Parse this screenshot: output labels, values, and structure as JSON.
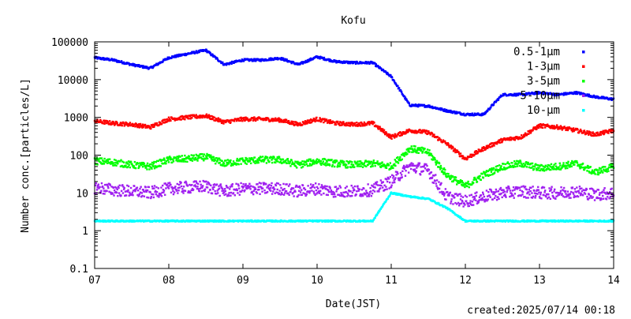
{
  "chart_data": {
    "type": "scatter",
    "title": "Kofu",
    "xlabel": "Date(JST)",
    "ylabel": "Number conc.[particles/L]",
    "yscale": "log",
    "ylim": [
      0.1,
      100000
    ],
    "xlim": [
      "2025-07-07",
      "2025-07-14"
    ],
    "x_tick_labels": [
      "07",
      "08",
      "09",
      "10",
      "11",
      "12",
      "13",
      "14"
    ],
    "y_tick_labels": [
      "0.1",
      "1",
      "10",
      "100",
      "1000",
      "10000",
      "100000"
    ],
    "grid": false,
    "legend_position": "top-right",
    "created": "created:2025/07/14 00:18",
    "series": [
      {
        "name": "0.5-1μm",
        "color": "#0000ff",
        "x": [
          "07 00:00",
          "07 06:00",
          "07 12:00",
          "07 18:00",
          "08 00:00",
          "08 06:00",
          "08 12:00",
          "08 18:00",
          "09 00:00",
          "09 06:00",
          "09 12:00",
          "09 18:00",
          "10 00:00",
          "10 06:00",
          "10 12:00",
          "10 18:00",
          "11 00:00",
          "11 06:00",
          "11 12:00",
          "11 18:00",
          "12 00:00",
          "12 06:00",
          "12 12:00",
          "12 18:00",
          "13 00:00",
          "13 06:00",
          "13 12:00",
          "13 18:00",
          "14 00:00"
        ],
        "values": [
          38000,
          33000,
          25000,
          20000,
          38000,
          48000,
          60000,
          25000,
          33000,
          33000,
          37000,
          25000,
          40000,
          30000,
          28000,
          28000,
          12000,
          2100,
          2000,
          1500,
          1200,
          1200,
          4000,
          4000,
          4500,
          4000,
          4500,
          3500,
          3000
        ]
      },
      {
        "name": "1-3μm",
        "color": "#ff0000",
        "x": [
          "07 00:00",
          "07 06:00",
          "07 12:00",
          "07 18:00",
          "08 00:00",
          "08 06:00",
          "08 12:00",
          "08 18:00",
          "09 00:00",
          "09 06:00",
          "09 12:00",
          "09 18:00",
          "10 00:00",
          "10 06:00",
          "10 12:00",
          "10 18:00",
          "11 00:00",
          "11 06:00",
          "11 12:00",
          "11 18:00",
          "12 00:00",
          "12 06:00",
          "12 12:00",
          "12 18:00",
          "13 00:00",
          "13 06:00",
          "13 12:00",
          "13 18:00",
          "14 00:00"
        ],
        "values": [
          800,
          700,
          650,
          550,
          900,
          1000,
          1100,
          750,
          900,
          900,
          850,
          650,
          900,
          700,
          650,
          700,
          300,
          450,
          400,
          200,
          80,
          150,
          250,
          300,
          600,
          550,
          450,
          350,
          450
        ]
      },
      {
        "name": "3-5μm",
        "color": "#00ff00",
        "x": [
          "07 00:00",
          "07 06:00",
          "07 12:00",
          "07 18:00",
          "08 00:00",
          "08 06:00",
          "08 12:00",
          "08 18:00",
          "09 00:00",
          "09 06:00",
          "09 12:00",
          "09 18:00",
          "10 00:00",
          "10 06:00",
          "10 12:00",
          "10 18:00",
          "11 00:00",
          "11 06:00",
          "11 12:00",
          "11 18:00",
          "12 00:00",
          "12 06:00",
          "12 12:00",
          "12 18:00",
          "13 00:00",
          "13 06:00",
          "13 12:00",
          "13 18:00",
          "14 00:00"
        ],
        "values": [
          70,
          65,
          55,
          50,
          75,
          80,
          90,
          60,
          70,
          75,
          75,
          55,
          70,
          60,
          55,
          60,
          50,
          150,
          120,
          30,
          15,
          30,
          50,
          60,
          45,
          50,
          60,
          35,
          50
        ]
      },
      {
        "name": "5-10μm",
        "color": "#a020f0",
        "x": [
          "07 00:00",
          "07 06:00",
          "07 12:00",
          "07 18:00",
          "08 00:00",
          "08 06:00",
          "08 12:00",
          "08 18:00",
          "09 00:00",
          "09 06:00",
          "09 12:00",
          "09 18:00",
          "10 00:00",
          "10 06:00",
          "10 12:00",
          "10 18:00",
          "11 00:00",
          "11 06:00",
          "11 12:00",
          "11 18:00",
          "12 00:00",
          "12 06:00",
          "12 12:00",
          "12 18:00",
          "13 00:00",
          "13 06:00",
          "13 12:00",
          "13 18:00",
          "14 00:00"
        ],
        "values": [
          14,
          12,
          11,
          10,
          13,
          14,
          15,
          11,
          13,
          13,
          13,
          11,
          13,
          11,
          11,
          12,
          20,
          50,
          40,
          8,
          6,
          8,
          10,
          11,
          10,
          10,
          11,
          9,
          10
        ]
      },
      {
        "name": "10-μm",
        "color": "#00ffff",
        "x": [
          "07 00:00",
          "07 06:00",
          "07 12:00",
          "07 18:00",
          "08 00:00",
          "08 06:00",
          "08 12:00",
          "08 18:00",
          "09 00:00",
          "09 06:00",
          "09 12:00",
          "09 18:00",
          "10 00:00",
          "10 06:00",
          "10 12:00",
          "10 18:00",
          "11 00:00",
          "11 06:00",
          "11 12:00",
          "11 18:00",
          "12 00:00",
          "12 06:00",
          "12 12:00",
          "12 18:00",
          "13 00:00",
          "13 06:00",
          "13 12:00",
          "13 18:00",
          "14 00:00"
        ],
        "values": [
          1.8,
          1.8,
          1.8,
          1.8,
          1.8,
          1.8,
          1.8,
          1.8,
          1.8,
          1.8,
          1.8,
          1.8,
          1.8,
          1.8,
          1.8,
          1.8,
          10,
          8,
          7,
          4,
          1.8,
          1.8,
          1.8,
          1.8,
          1.8,
          1.8,
          1.8,
          1.8,
          1.8
        ]
      }
    ]
  }
}
